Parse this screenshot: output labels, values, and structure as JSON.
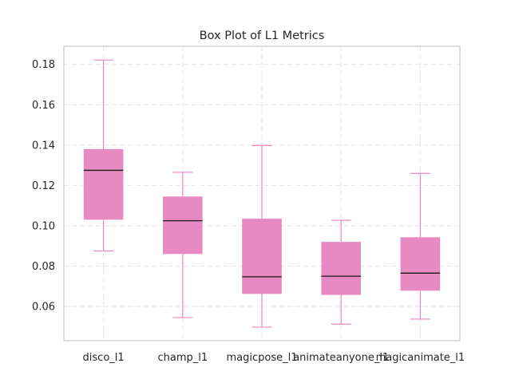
{
  "chart_data": {
    "type": "box",
    "title": "Box Plot of L1 Metrics",
    "xlabel": "",
    "ylabel": "",
    "ylim": [
      0.043,
      0.189
    ],
    "yticks": [
      0.06,
      0.08,
      0.1,
      0.12,
      0.14,
      0.16,
      0.18
    ],
    "ytick_labels": [
      "0.06",
      "0.08",
      "0.10",
      "0.12",
      "0.14",
      "0.16",
      "0.18"
    ],
    "grid": true,
    "box_color": "#e78ac3",
    "median_color": "#1a1a1a",
    "categories": [
      "disco_l1",
      "champ_l1",
      "magicpose_l1",
      "animateanyone_l1",
      "magicanimate_l1"
    ],
    "boxes": [
      {
        "label": "disco_l1",
        "whislo": 0.0875,
        "q1": 0.103,
        "med": 0.1275,
        "q3": 0.138,
        "whishi": 0.1822
      },
      {
        "label": "champ_l1",
        "whislo": 0.0545,
        "q1": 0.086,
        "med": 0.1025,
        "q3": 0.1145,
        "whishi": 0.1265
      },
      {
        "label": "magicpose_l1",
        "whislo": 0.0497,
        "q1": 0.0662,
        "med": 0.0747,
        "q3": 0.1035,
        "whishi": 0.1398
      },
      {
        "label": "animateanyone_l1",
        "whislo": 0.0512,
        "q1": 0.0657,
        "med": 0.075,
        "q3": 0.092,
        "whishi": 0.1027
      },
      {
        "label": "magicanimate_l1",
        "whislo": 0.0537,
        "q1": 0.0678,
        "med": 0.0765,
        "q3": 0.0943,
        "whishi": 0.126
      }
    ]
  }
}
